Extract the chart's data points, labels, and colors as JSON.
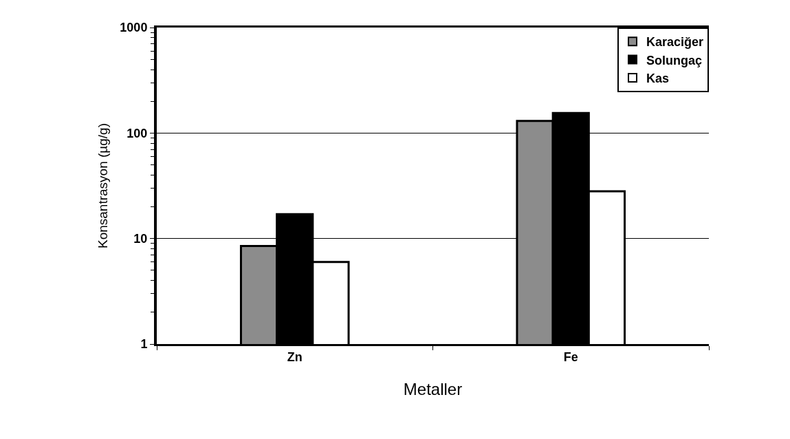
{
  "chart_data": {
    "type": "bar",
    "xlabel": "Metaller",
    "ylabel": "Konsantrasyon (µg/g)",
    "categories": [
      "Zn",
      "Fe"
    ],
    "series": [
      {
        "name": "Karaciğer",
        "color": "#8c8c8c",
        "values": [
          8.5,
          130
        ]
      },
      {
        "name": "Solungaç",
        "color": "#000000",
        "values": [
          17,
          155
        ]
      },
      {
        "name": "Kas",
        "color": "#ffffff",
        "values": [
          6,
          28
        ]
      }
    ],
    "log": true,
    "ylim": [
      1,
      1000
    ],
    "yticks": [
      1,
      10,
      100,
      1000
    ],
    "grid": "y",
    "legend": "top right"
  }
}
